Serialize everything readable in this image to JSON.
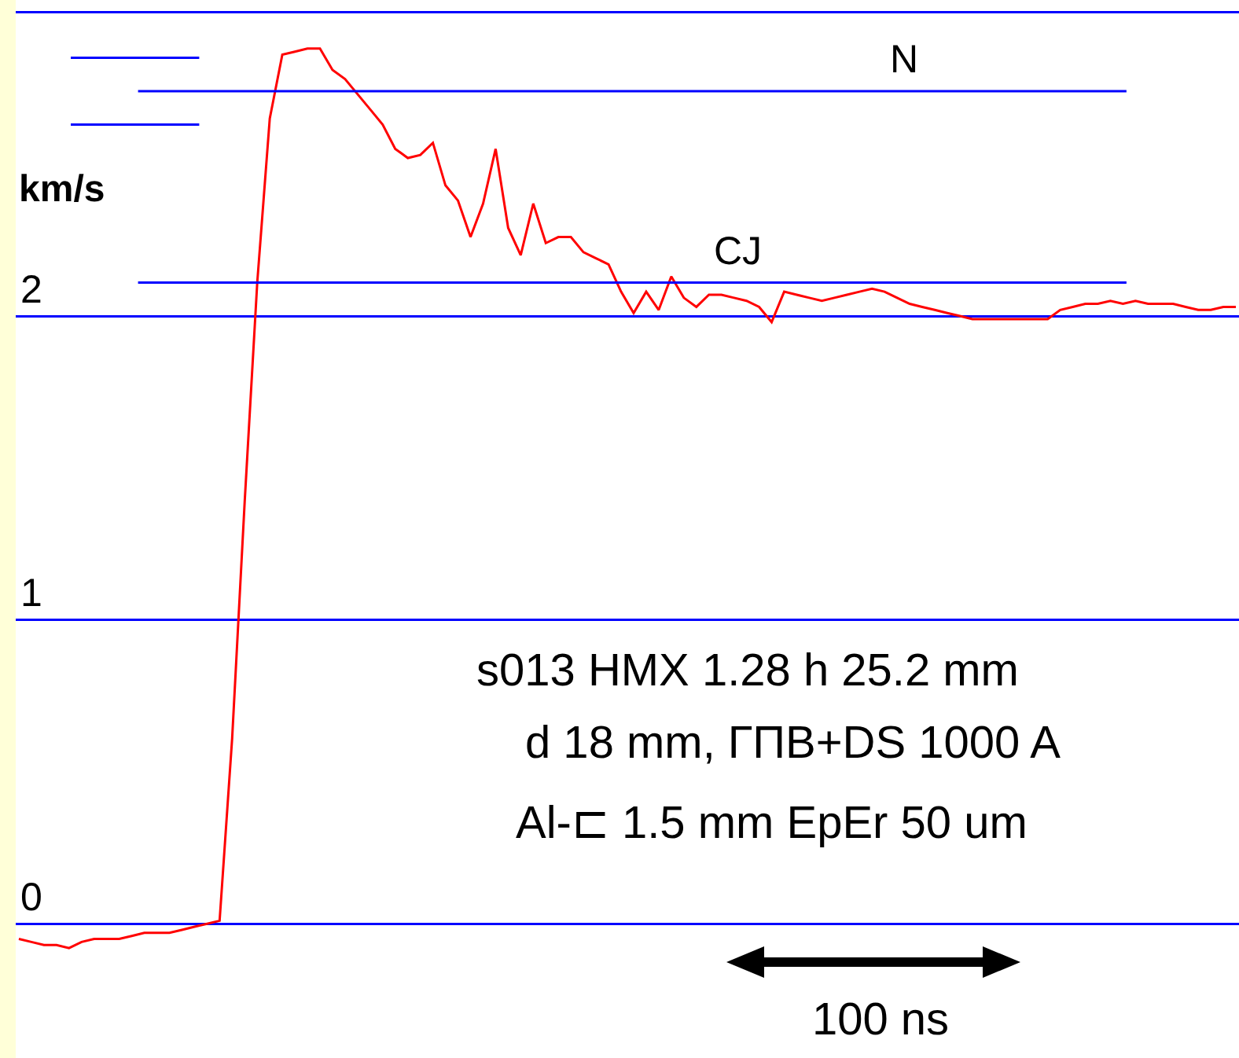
{
  "chart_data": {
    "type": "line",
    "ylabel": "km/s",
    "categories": [
      null,
      null,
      null,
      null,
      null,
      null,
      null,
      null,
      null,
      null,
      null,
      null,
      null,
      null,
      null,
      null,
      null,
      null,
      null,
      null,
      null,
      null,
      null,
      null,
      null,
      null,
      null,
      null,
      null,
      null,
      null,
      null,
      null,
      null,
      null,
      null,
      null,
      null,
      null,
      null,
      null,
      null,
      null,
      null,
      null,
      null,
      null,
      null,
      null,
      null,
      null,
      null,
      null,
      null,
      null,
      null,
      null,
      null,
      null,
      null,
      null,
      null,
      null,
      null,
      null,
      null,
      null,
      null,
      null,
      null,
      null,
      null,
      null,
      null,
      null,
      null,
      null,
      null,
      null,
      null,
      null,
      null,
      null,
      null,
      null,
      null,
      null,
      null,
      null,
      null,
      null,
      null,
      null,
      null,
      null,
      null,
      null,
      null
    ],
    "series": [
      {
        "color": "#ff0000",
        "values": [
          -0.05,
          -0.06,
          -0.07,
          -0.07,
          -0.08,
          -0.06,
          -0.05,
          -0.05,
          -0.05,
          -0.04,
          -0.03,
          -0.03,
          -0.03,
          -0.02,
          -0.01,
          0,
          0.01,
          0.61,
          1.39,
          2.11,
          2.65,
          2.86,
          2.87,
          2.88,
          2.88,
          2.81,
          2.78,
          2.73,
          2.68,
          2.63,
          2.55,
          2.52,
          2.53,
          2.57,
          2.43,
          2.38,
          2.26,
          2.37,
          2.55,
          2.29,
          2.2,
          2.37,
          2.24,
          2.26,
          2.26,
          2.21,
          2.19,
          2.17,
          2.08,
          2.01,
          2.08,
          2.02,
          2.13,
          2.06,
          2.03,
          2.07,
          2.07,
          2.06,
          2.05,
          2.03,
          1.98,
          2.08,
          2.07,
          2.06,
          2.05,
          2.06,
          2.07,
          2.08,
          2.09,
          2.08,
          2.06,
          2.04,
          2.03,
          2.02,
          2.01,
          2.0,
          1.99,
          1.99,
          1.99,
          1.99,
          1.99,
          1.99,
          1.99,
          2.02,
          2.03,
          2.04,
          2.04,
          2.05,
          2.04,
          2.05,
          2.04,
          2.04,
          2.04,
          2.03,
          2.02,
          2.02,
          2.03,
          2.03
        ]
      }
    ],
    "ylim": [
      -0.09,
      3.04
    ],
    "yticks": [
      0,
      1,
      2,
      {
        "value": 3,
        "label": null
      }
    ],
    "tick_labels": "y",
    "grid": "y",
    "legend": false,
    "line_style": "solid",
    "marker": "none",
    "ref_lines": [
      {
        "axis": "y",
        "value": 2.74,
        "label": "N",
        "color": "#0000ff"
      },
      {
        "axis": "y",
        "value": 2.11,
        "label": "CJ",
        "color": "#0000ff"
      },
      {
        "axis": "y",
        "value": 2.85,
        "color": "#0000ff"
      },
      {
        "axis": "y",
        "value": 2.63,
        "color": "#0000ff"
      }
    ],
    "annotations": [
      "s013 HMX 1.28 h 25.2 mm",
      "d 18 mm, ГПВ+DS 1000 A",
      "Al-⊏ 1.5 mm EpEr 50 um",
      "100 ns"
    ]
  }
}
